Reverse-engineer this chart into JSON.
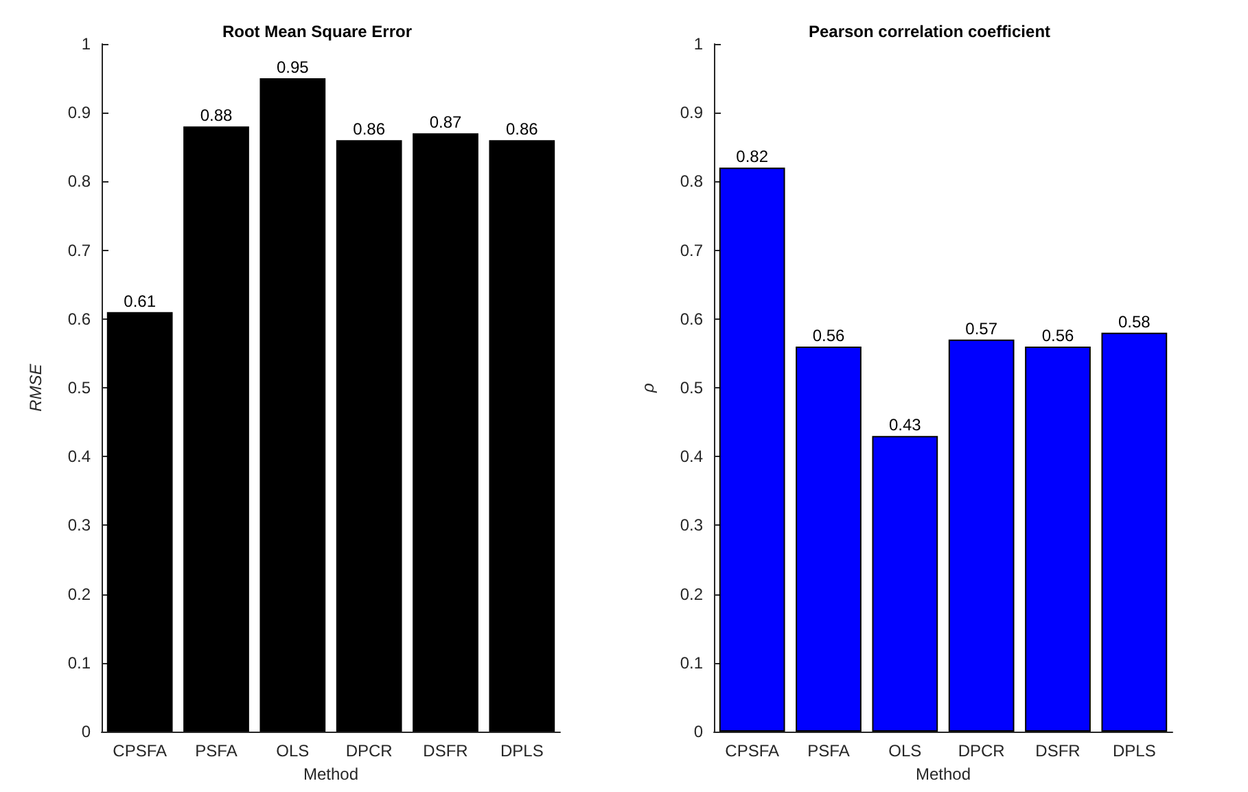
{
  "chart_data": [
    {
      "type": "bar",
      "title": "Root Mean Square Error",
      "xlabel": "Method",
      "ylabel": "RMSE",
      "categories": [
        "CPSFA",
        "PSFA",
        "OLS",
        "DPCR",
        "DSFR",
        "DPLS"
      ],
      "values": [
        0.61,
        0.88,
        0.95,
        0.86,
        0.87,
        0.86
      ],
      "color": "#000000",
      "ylim": [
        0,
        1
      ],
      "yticks": [
        0,
        0.1,
        0.2,
        0.3,
        0.4,
        0.5,
        0.6,
        0.7,
        0.8,
        0.9,
        1
      ],
      "data_labels": true
    },
    {
      "type": "bar",
      "title": "Pearson correlation coefficient",
      "xlabel": "Method",
      "ylabel": "ρ",
      "categories": [
        "CPSFA",
        "PSFA",
        "OLS",
        "DPCR",
        "DSFR",
        "DPLS"
      ],
      "values": [
        0.82,
        0.56,
        0.43,
        0.57,
        0.56,
        0.58
      ],
      "color": "#0000ff",
      "ylim": [
        0,
        1
      ],
      "yticks": [
        0,
        0.1,
        0.2,
        0.3,
        0.4,
        0.5,
        0.6,
        0.7,
        0.8,
        0.9,
        1
      ],
      "data_labels": true
    }
  ]
}
